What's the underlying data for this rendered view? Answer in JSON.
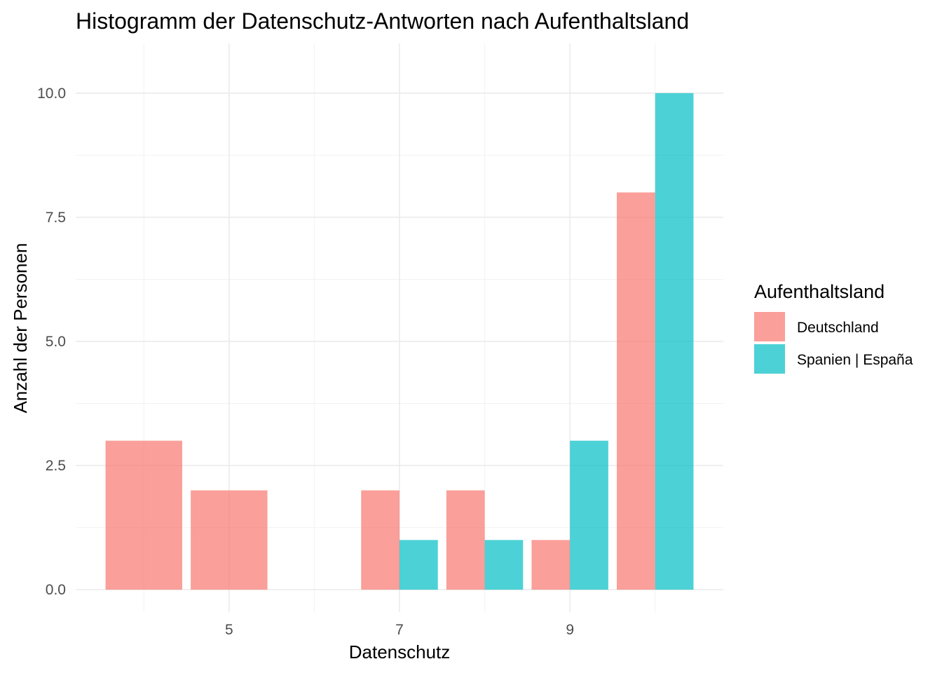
{
  "chart_data": {
    "type": "bar",
    "title": "Histogramm der Datenschutz-Antworten nach Aufenthaltsland",
    "xlabel": "Datenschutz",
    "ylabel": "Anzahl der Personen",
    "x_ticks": [
      "5",
      "7",
      "9"
    ],
    "y_ticks": [
      "0.0",
      "2.5",
      "5.0",
      "7.5",
      "10.0"
    ],
    "xlim": [
      3.2,
      10.8
    ],
    "ylim": [
      -0.45,
      11.0
    ],
    "grid": true,
    "legend": {
      "title": "Aufenthaltsland",
      "position": "right"
    },
    "bars": [
      {
        "series": "Deutschland",
        "xmin": 3.55,
        "xmax": 4.45,
        "value": 3
      },
      {
        "series": "Deutschland",
        "xmin": 4.55,
        "xmax": 5.45,
        "value": 2
      },
      {
        "series": "Deutschland",
        "xmin": 6.55,
        "xmax": 7.0,
        "value": 2
      },
      {
        "series": "Spanien | España",
        "xmin": 7.0,
        "xmax": 7.45,
        "value": 1
      },
      {
        "series": "Deutschland",
        "xmin": 7.55,
        "xmax": 8.0,
        "value": 2
      },
      {
        "series": "Spanien | España",
        "xmin": 8.0,
        "xmax": 8.45,
        "value": 1
      },
      {
        "series": "Deutschland",
        "xmin": 8.55,
        "xmax": 9.0,
        "value": 1
      },
      {
        "series": "Spanien | España",
        "xmin": 9.0,
        "xmax": 9.45,
        "value": 3
      },
      {
        "series": "Deutschland",
        "xmin": 9.55,
        "xmax": 10.0,
        "value": 8
      },
      {
        "series": "Spanien | España",
        "xmin": 10.0,
        "xmax": 10.45,
        "value": 10
      }
    ],
    "series": [
      {
        "name": "Deutschland",
        "color": "#f8766d"
      },
      {
        "name": "Spanien | España",
        "color": "#00bfc4"
      }
    ]
  }
}
